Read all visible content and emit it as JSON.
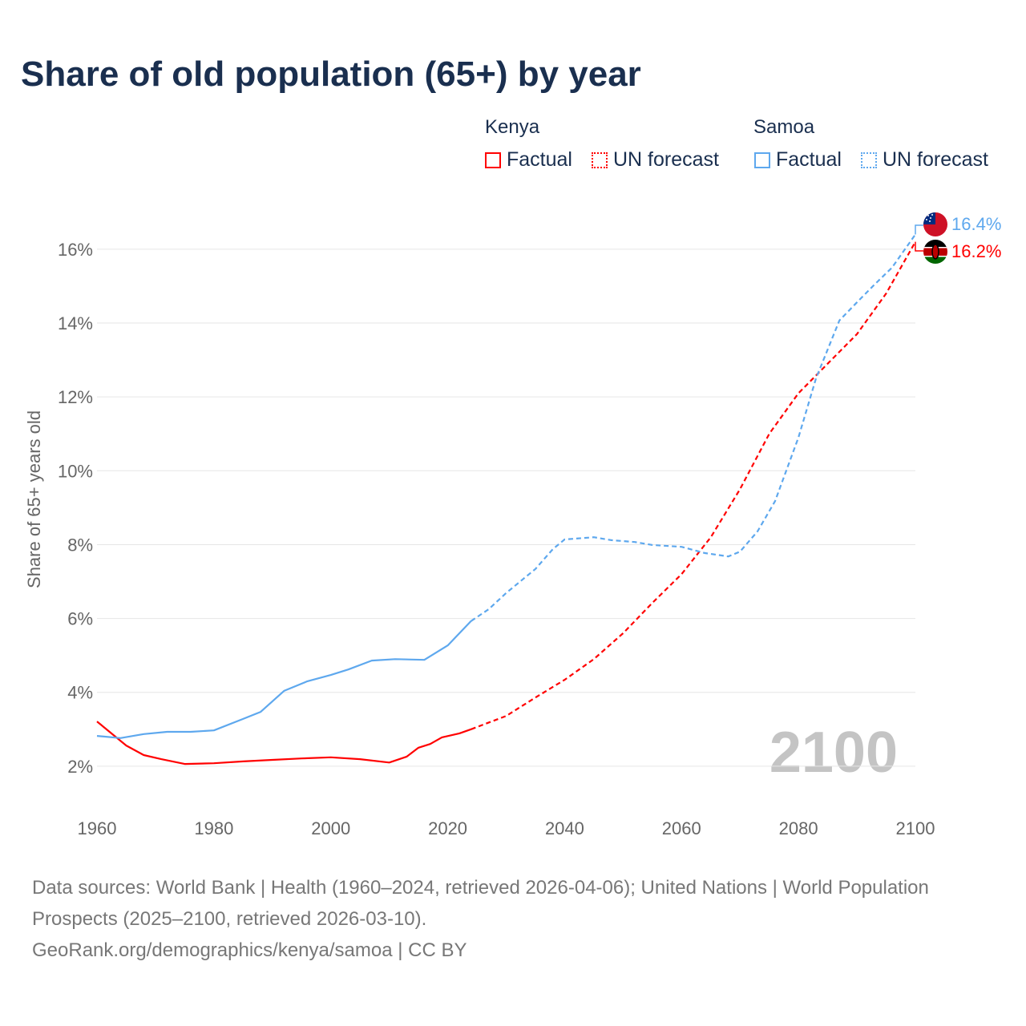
{
  "title": "Share of old population (65+) by year",
  "legend": {
    "groups": [
      {
        "name": "Kenya",
        "color": "#ff0000",
        "factual": "Factual",
        "forecast": "UN forecast"
      },
      {
        "name": "Samoa",
        "color": "#5ea8ee",
        "factual": "Factual",
        "forecast": "UN forecast"
      }
    ]
  },
  "source": {
    "line1": "Data sources: World Bank | Health (1960–2024, retrieved 2026-04-06); United Nations | World Population Prospects (2025–2100, retrieved 2026-03-10).",
    "line2": "GeoRank.org/demographics/kenya/samoa | CC BY"
  },
  "chart_data": {
    "type": "line",
    "title": "Share of old population (65+) by year",
    "xlabel": "",
    "ylabel": "Share of 65+ years old",
    "xlim": [
      1960,
      2100
    ],
    "ylim": [
      0,
      17
    ],
    "xticks": [
      1960,
      1980,
      2000,
      2020,
      2040,
      2060,
      2080,
      2100
    ],
    "xtick_labels": [
      "1960",
      "1980",
      "2000",
      "2020",
      "2040",
      "2060",
      "2080",
      "2100"
    ],
    "yticks": [
      2,
      4,
      6,
      8,
      10,
      12,
      14,
      16
    ],
    "ytick_labels": [
      "2%",
      "4%",
      "6%",
      "8%",
      "10%",
      "12%",
      "14%",
      "16%"
    ],
    "grid": true,
    "year_watermark": "2100",
    "series": [
      {
        "name": "Kenya",
        "color": "#ff0000",
        "end_label": "16.2%",
        "factual": {
          "x": [
            1960,
            1962,
            1965,
            1968,
            1971,
            1975,
            1980,
            1985,
            1990,
            1995,
            2000,
            2005,
            2010,
            2013,
            2015,
            2017,
            2019,
            2022,
            2024
          ],
          "y": [
            3.21,
            2.95,
            2.56,
            2.3,
            2.19,
            2.06,
            2.08,
            2.13,
            2.17,
            2.21,
            2.24,
            2.19,
            2.1,
            2.26,
            2.5,
            2.6,
            2.78,
            2.89,
            3.0
          ]
        },
        "forecast": {
          "x": [
            2024,
            2030,
            2035,
            2040,
            2045,
            2050,
            2055,
            2060,
            2065,
            2070,
            2075,
            2080,
            2085,
            2090,
            2095,
            2100
          ],
          "y": [
            3.0,
            3.36,
            3.86,
            4.34,
            4.9,
            5.6,
            6.42,
            7.2,
            8.2,
            9.5,
            11.0,
            12.1,
            12.9,
            13.7,
            14.8,
            16.2
          ]
        }
      },
      {
        "name": "Samoa",
        "color": "#5ea8ee",
        "end_label": "16.4%",
        "factual": {
          "x": [
            1960,
            1964,
            1968,
            1972,
            1976,
            1980,
            1985,
            1988,
            1992,
            1996,
            2000,
            2003,
            2007,
            2011,
            2016,
            2020,
            2024
          ],
          "y": [
            2.82,
            2.76,
            2.87,
            2.93,
            2.93,
            2.97,
            3.28,
            3.47,
            4.04,
            4.3,
            4.47,
            4.62,
            4.86,
            4.9,
            4.88,
            5.27,
            5.93
          ]
        },
        "forecast": {
          "x": [
            2024,
            2027,
            2030,
            2035,
            2038,
            2040,
            2045,
            2048,
            2052,
            2055,
            2060,
            2064,
            2068,
            2070,
            2073,
            2076,
            2080,
            2083,
            2087,
            2090,
            2093,
            2096,
            2100
          ],
          "y": [
            5.93,
            6.25,
            6.69,
            7.34,
            7.88,
            8.14,
            8.2,
            8.12,
            8.07,
            7.99,
            7.94,
            7.77,
            7.68,
            7.81,
            8.36,
            9.18,
            10.9,
            12.5,
            14.07,
            14.56,
            15.04,
            15.5,
            16.4
          ]
        }
      }
    ]
  }
}
